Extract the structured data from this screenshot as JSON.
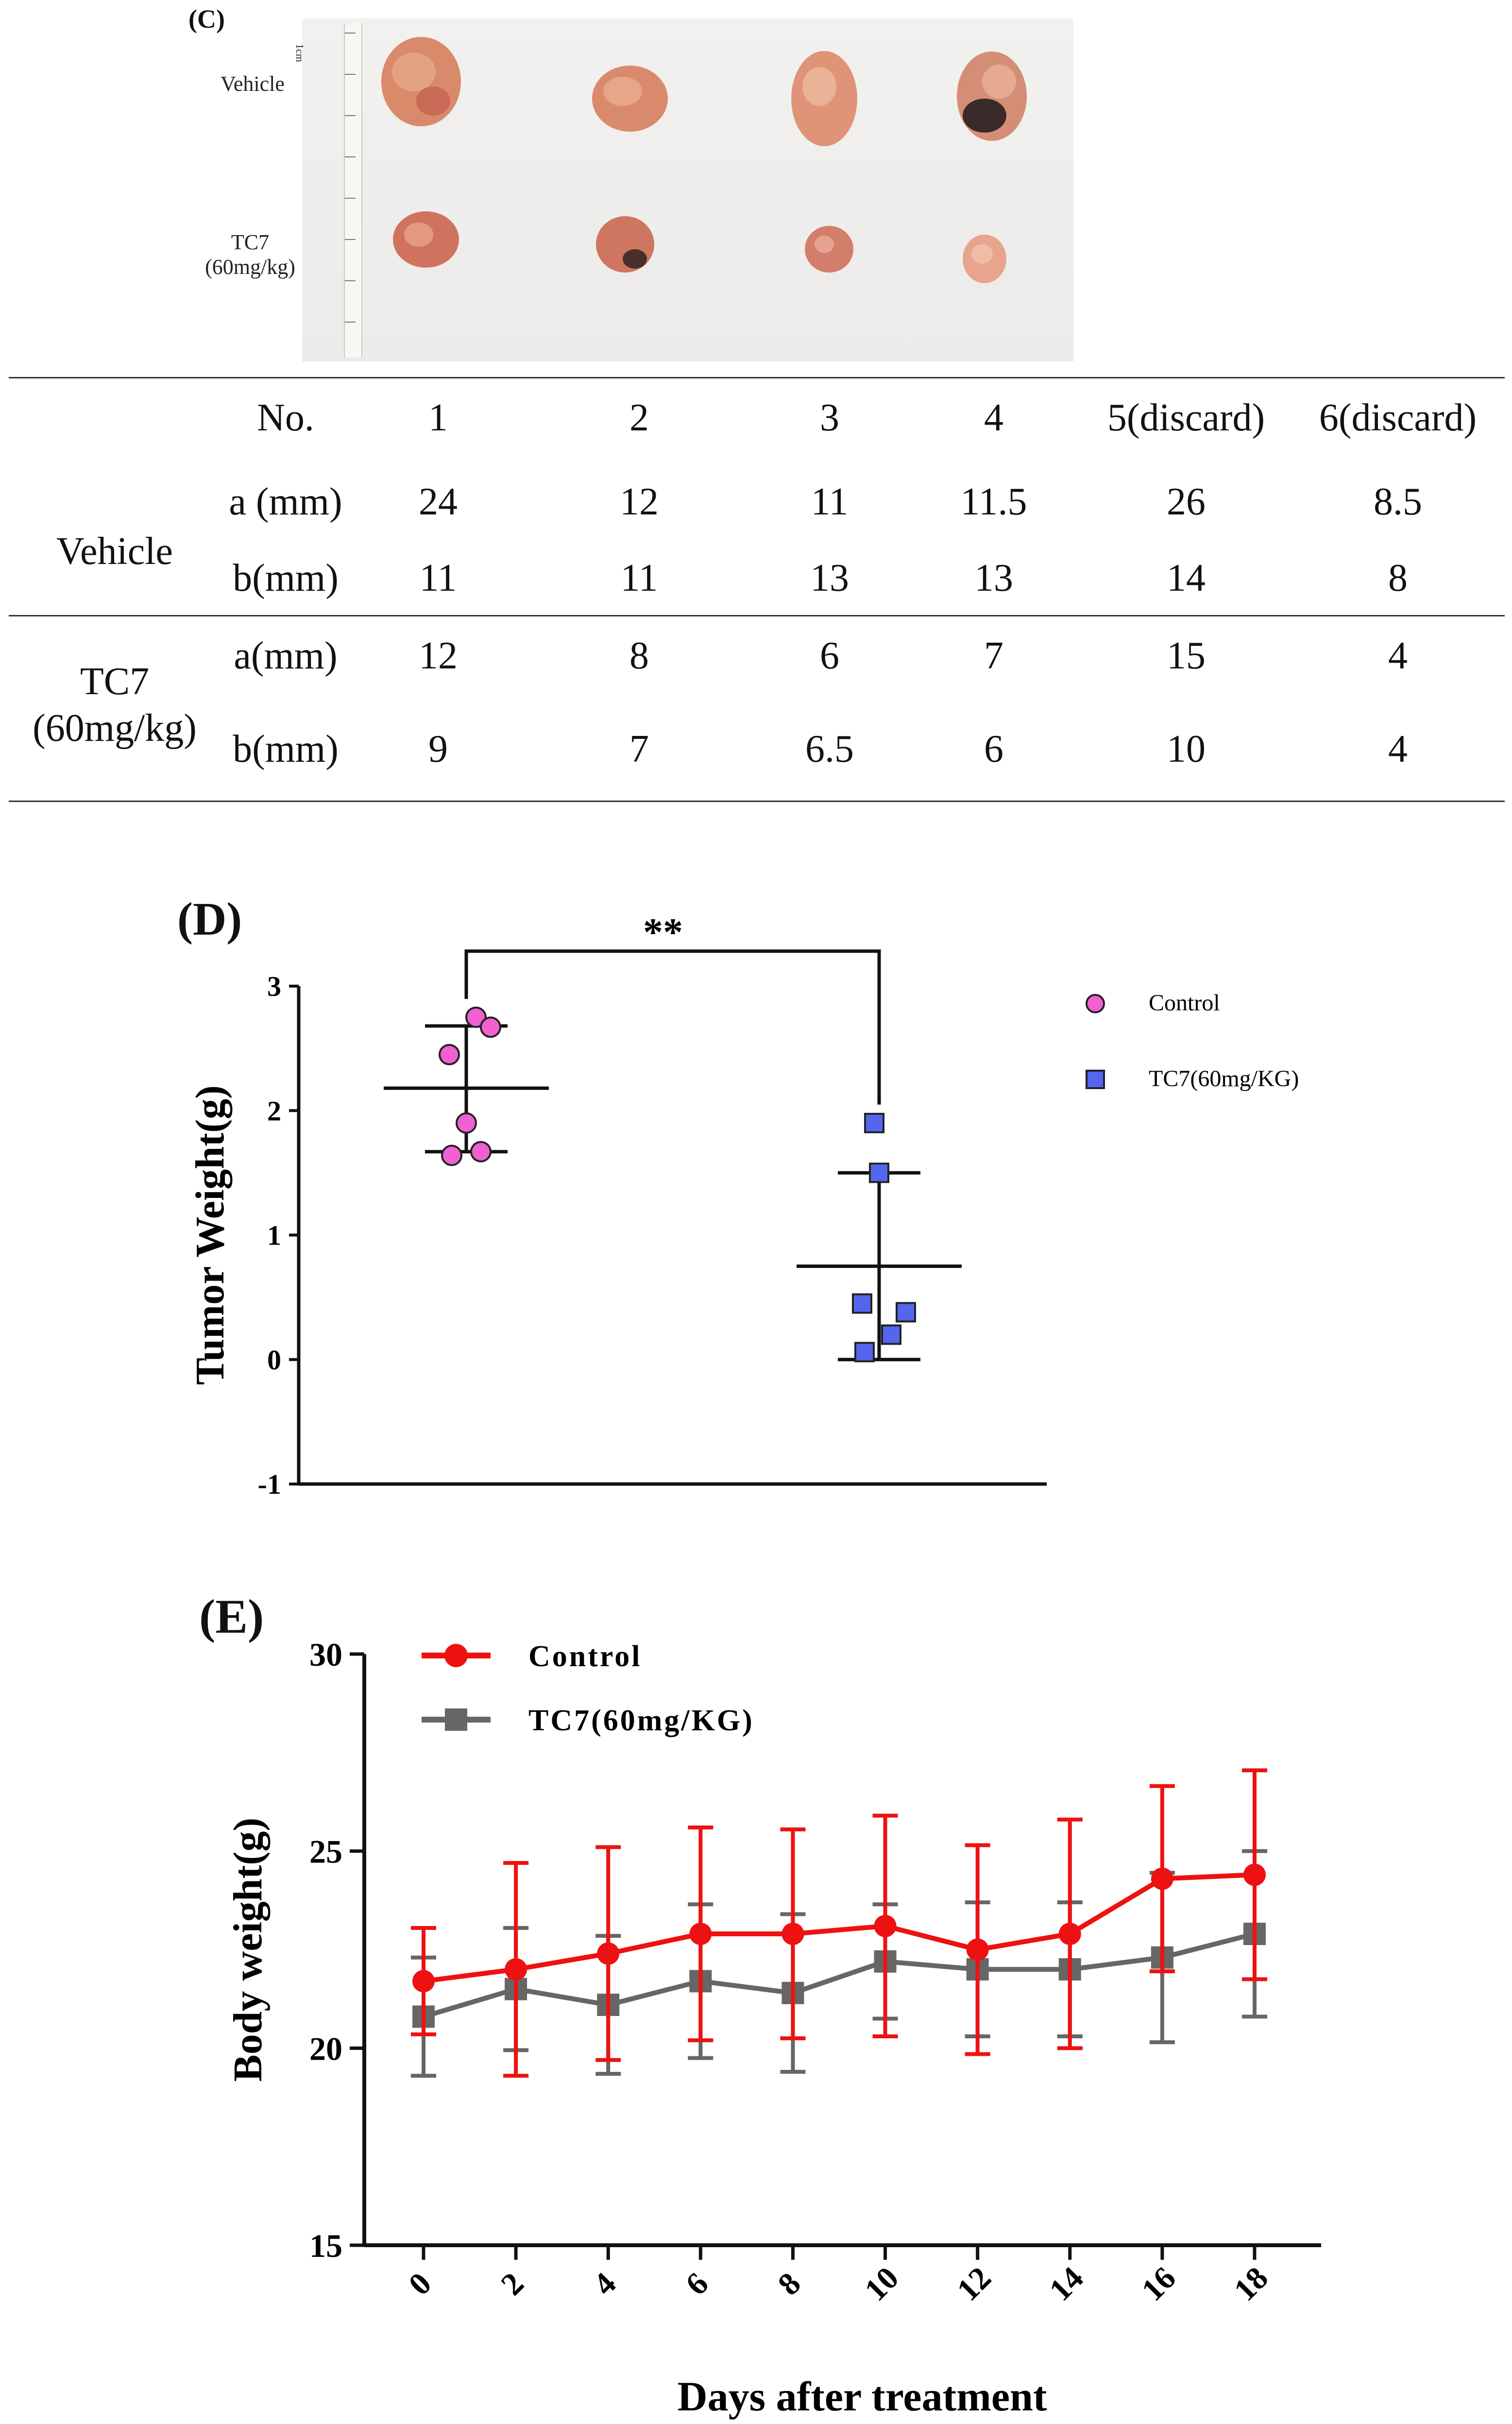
{
  "panel_c": {
    "label": "(C)",
    "photo": {
      "row1_label": "Vehicle",
      "row2_label_line1": "TC7",
      "row2_label_line2": "(60mg/kg)",
      "ruler_label": "1cm"
    },
    "table": {
      "header": [
        "No.",
        "1",
        "2",
        "3",
        "4",
        "5(discard)",
        "6(discard)"
      ],
      "groups": [
        {
          "name_lines": [
            "Vehicle"
          ],
          "rows": [
            {
              "measure": "a (mm)",
              "values": [
                "24",
                "12",
                "11",
                "11.5",
                "26",
                "8.5"
              ]
            },
            {
              "measure": "b(mm)",
              "values": [
                "11",
                "11",
                "13",
                "13",
                "14",
                "8"
              ]
            }
          ]
        },
        {
          "name_lines": [
            "TC7",
            "(60mg/kg)"
          ],
          "rows": [
            {
              "measure": "a(mm)",
              "values": [
                "12",
                "8",
                "6",
                "7",
                "15",
                "4"
              ]
            },
            {
              "measure": "b(mm)",
              "values": [
                "9",
                "7",
                "6.5",
                "6",
                "10",
                "4"
              ]
            }
          ]
        }
      ]
    }
  },
  "panel_d": {
    "label": "(D)"
  },
  "panel_e": {
    "label": "(E)"
  },
  "chart_data": [
    {
      "id": "tumor-weight",
      "type": "scatter",
      "title": "",
      "ylabel": "Tumor Weight(g)",
      "xlabel": "",
      "ylim": [
        -1,
        3
      ],
      "yticks": [
        -1,
        0,
        1,
        2,
        3
      ],
      "significance": "**",
      "series": [
        {
          "name": "Control",
          "color": "#f060d0",
          "marker": "circle",
          "points": [
            2.75,
            2.67,
            2.45,
            1.9,
            1.67,
            1.64
          ],
          "mean": 2.18,
          "sd_upper": 2.68,
          "sd_lower": 1.67
        },
        {
          "name": "TC7(60mg/KG)",
          "color": "#5566ee",
          "marker": "square",
          "points": [
            1.9,
            1.5,
            0.45,
            0.38,
            0.2,
            0.06
          ],
          "mean": 0.75,
          "sd_upper": 1.5,
          "sd_lower": 0.0
        }
      ]
    },
    {
      "id": "body-weight",
      "type": "line",
      "title": "",
      "xlabel": "Days after treatment",
      "ylabel": "Body weight(g)",
      "x": [
        0,
        2,
        4,
        6,
        8,
        10,
        12,
        14,
        16,
        18
      ],
      "ylim": [
        15,
        30
      ],
      "yticks": [
        15,
        20,
        25,
        30
      ],
      "series": [
        {
          "name": "Control",
          "color": "#ee1111",
          "marker": "circle",
          "values": [
            21.7,
            22.0,
            22.4,
            22.9,
            22.9,
            23.1,
            22.5,
            22.9,
            24.3,
            24.4
          ],
          "errors": [
            1.35,
            2.7,
            2.7,
            2.7,
            2.65,
            2.8,
            2.65,
            2.9,
            2.35,
            2.65
          ]
        },
        {
          "name": "TC7(60mg/KG)",
          "color": "#666666",
          "marker": "square",
          "values": [
            20.8,
            21.5,
            21.1,
            21.7,
            21.4,
            22.2,
            22.0,
            22.0,
            22.3,
            22.9
          ],
          "errors": [
            1.5,
            1.55,
            1.75,
            1.95,
            2.0,
            1.45,
            1.7,
            1.7,
            2.15,
            2.1
          ]
        }
      ]
    }
  ]
}
